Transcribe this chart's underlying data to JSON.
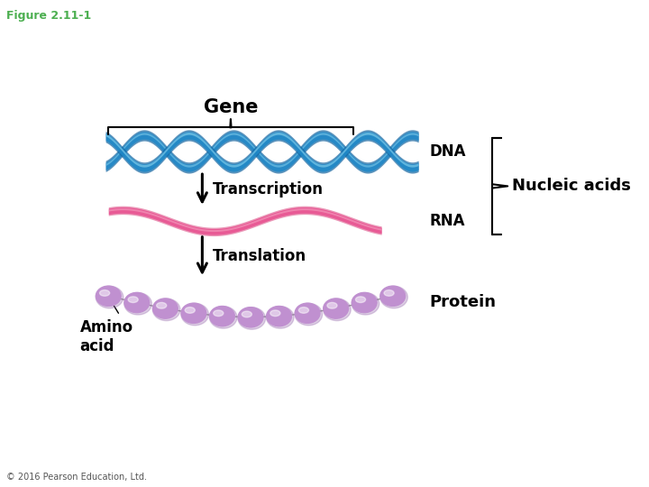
{
  "title": "Figure 2.11-1",
  "title_color": "#4CAF50",
  "title_fontsize": 9,
  "background_color": "#ffffff",
  "gene_label": "Gene",
  "gene_label_fontsize": 15,
  "gene_label_fontweight": "bold",
  "transcription_label": "Transcription",
  "transcription_fontsize": 12,
  "transcription_fontweight": "bold",
  "translation_label": "Translation",
  "translation_fontsize": 12,
  "translation_fontweight": "bold",
  "dna_label": "DNA",
  "dna_label_fontsize": 12,
  "dna_label_fontweight": "bold",
  "rna_label": "RNA",
  "rna_label_fontsize": 12,
  "rna_label_fontweight": "bold",
  "protein_label": "Protein",
  "protein_label_fontsize": 13,
  "protein_label_fontweight": "bold",
  "nucleic_acids_label": "Nucleic acids",
  "nucleic_acids_fontsize": 13,
  "nucleic_acids_fontweight": "bold",
  "amino_acid_label": "Amino\nacid",
  "amino_acid_fontsize": 12,
  "amino_acid_fontweight": "bold",
  "copyright_label": "© 2016 Pearson Education, Ltd.",
  "copyright_fontsize": 7,
  "dna_dark": "#1565A0",
  "dna_mid": "#1E88C8",
  "dna_light": "#7BC8E8",
  "rna_dark": "#D63070",
  "rna_mid": "#E85090",
  "rna_light": "#F4A0C0",
  "bead_color": "#C090D0",
  "bead_edge_color": "#9060A8",
  "bead_highlight": "#E0B8F0",
  "arrow_color": "#000000"
}
